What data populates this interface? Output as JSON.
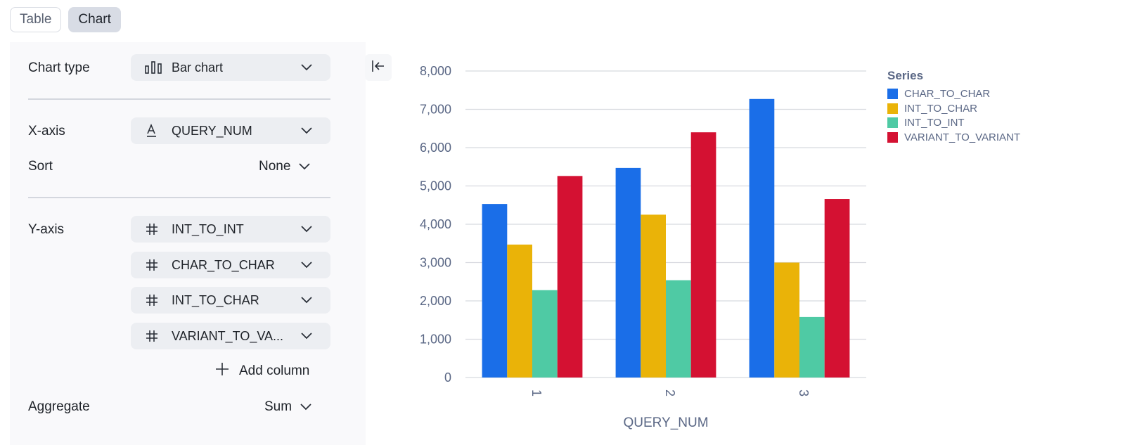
{
  "tabs": {
    "table": "Table",
    "chart": "Chart"
  },
  "config": {
    "chart_type": {
      "label": "Chart type",
      "value": "Bar chart",
      "icon": "bar-chart-icon"
    },
    "x_axis": {
      "label": "X-axis",
      "value": "QUERY_NUM",
      "icon": "text-type-icon"
    },
    "sort": {
      "label": "Sort",
      "value": "None"
    },
    "y_axis": {
      "label": "Y-axis",
      "columns": [
        {
          "value": "INT_TO_INT",
          "icon": "hash-icon"
        },
        {
          "value": "CHAR_TO_CHAR",
          "icon": "hash-icon"
        },
        {
          "value": "INT_TO_CHAR",
          "icon": "hash-icon"
        },
        {
          "value": "VARIANT_TO_VA...",
          "icon": "hash-icon"
        }
      ],
      "add_column": "Add column"
    },
    "aggregate": {
      "label": "Aggregate",
      "value": "Sum"
    }
  },
  "chart_data": {
    "type": "bar",
    "categories": [
      "1",
      "2",
      "3"
    ],
    "series": [
      {
        "name": "CHAR_TO_CHAR",
        "color": "#1a6ee8",
        "values": [
          4530,
          5470,
          7270
        ]
      },
      {
        "name": "INT_TO_CHAR",
        "color": "#eab308",
        "values": [
          3470,
          4250,
          3000
        ]
      },
      {
        "name": "INT_TO_INT",
        "color": "#4fcaa4",
        "values": [
          2280,
          2540,
          1580
        ]
      },
      {
        "name": "VARIANT_TO_VARIANT",
        "color": "#d41132",
        "values": [
          5260,
          6400,
          4660
        ]
      }
    ],
    "xlabel": "QUERY_NUM",
    "ylabel": "",
    "ylim": [
      0,
      8000
    ],
    "yticks": [
      "0",
      "1,000",
      "2,000",
      "3,000",
      "4,000",
      "5,000",
      "6,000",
      "7,000",
      "8,000"
    ],
    "legend_title": "Series",
    "legend_position": "top-right",
    "grid": true
  }
}
